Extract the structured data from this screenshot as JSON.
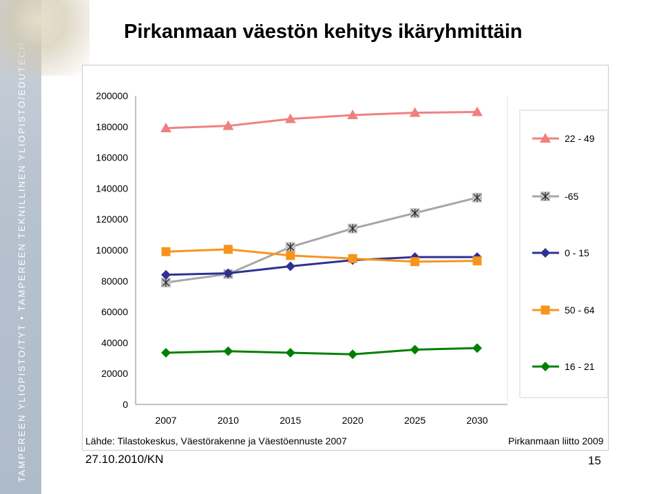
{
  "slide": {
    "title": "Pirkanmaan väestön kehitys ikäryhmittäin",
    "sidebar_text": "TAMPEREEN YLIOPISTO/TYT • TAMPEREEN TEKNILLINEN YLIOPISTO/EDUTECH",
    "source": "Lähde: Tilastokeskus, Väestörakenne ja Väestöennuste 2007",
    "credit": "Pirkanmaan liitto 2009",
    "date": "27.10.2010/KN",
    "page_number": "15"
  },
  "chart_data": {
    "type": "line",
    "title": "",
    "xlabel": "",
    "ylabel": "",
    "categories": [
      "2007",
      "2010",
      "2015",
      "2020",
      "2025",
      "2030"
    ],
    "ylim": [
      0,
      200000
    ],
    "yticks": [
      "0",
      "20000",
      "40000",
      "60000",
      "80000",
      "100000",
      "120000",
      "140000",
      "160000",
      "180000",
      "200000"
    ],
    "grid": false,
    "legend_position": "right",
    "series": [
      {
        "name": "22 - 49",
        "values": [
          179000,
          180500,
          185000,
          187500,
          189000,
          189500
        ],
        "color": "#f08080",
        "marker": "triangle"
      },
      {
        "name": "-65",
        "values": [
          79000,
          84500,
          102000,
          114000,
          124000,
          134000
        ],
        "color": "#a6a6a6",
        "marker": "star"
      },
      {
        "name": "0 - 15",
        "values": [
          84000,
          85000,
          89500,
          93500,
          95500,
          95500
        ],
        "color": "#2e3192",
        "marker": "diamond"
      },
      {
        "name": "50 - 64",
        "values": [
          99000,
          100500,
          96500,
          94500,
          92500,
          93000
        ],
        "color": "#f7941d",
        "marker": "square"
      },
      {
        "name": "16 - 21",
        "values": [
          33500,
          34500,
          33500,
          32500,
          35500,
          36500
        ],
        "color": "#008000",
        "marker": "diamond"
      }
    ]
  }
}
